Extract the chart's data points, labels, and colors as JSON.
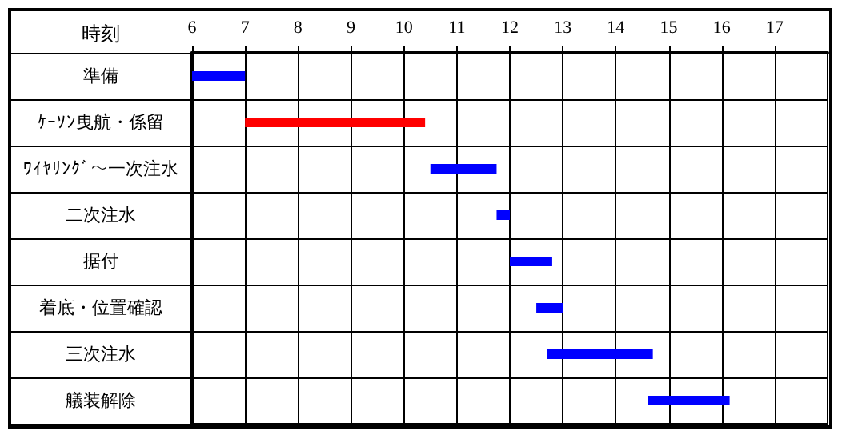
{
  "chart_data": {
    "type": "bar",
    "orientation": "horizontal",
    "xlabel": "時刻",
    "categories": [
      "準備",
      "ｹｰｿﾝ曳航・係留",
      "ﾜｲﾔﾘﾝｸﾞ～一次注水",
      "二次注水",
      "据付",
      "着底・位置確認",
      "三次注水",
      "艤装解除"
    ],
    "base": [
      6,
      7,
      10.5,
      11.75,
      12,
      12.5,
      12.7,
      14.6
    ],
    "values": [
      1,
      3.4,
      1.25,
      0.25,
      0.8,
      0.5,
      2,
      1.55
    ],
    "colors": [
      "#0000ff",
      "#ff0000",
      "#0000ff",
      "#0000ff",
      "#0000ff",
      "#0000ff",
      "#0000ff",
      "#0000ff"
    ],
    "xlim": [
      6,
      18
    ],
    "xticks": [
      6,
      7,
      8,
      9,
      10,
      11,
      12,
      13,
      14,
      15,
      16,
      17
    ],
    "grid": true
  }
}
